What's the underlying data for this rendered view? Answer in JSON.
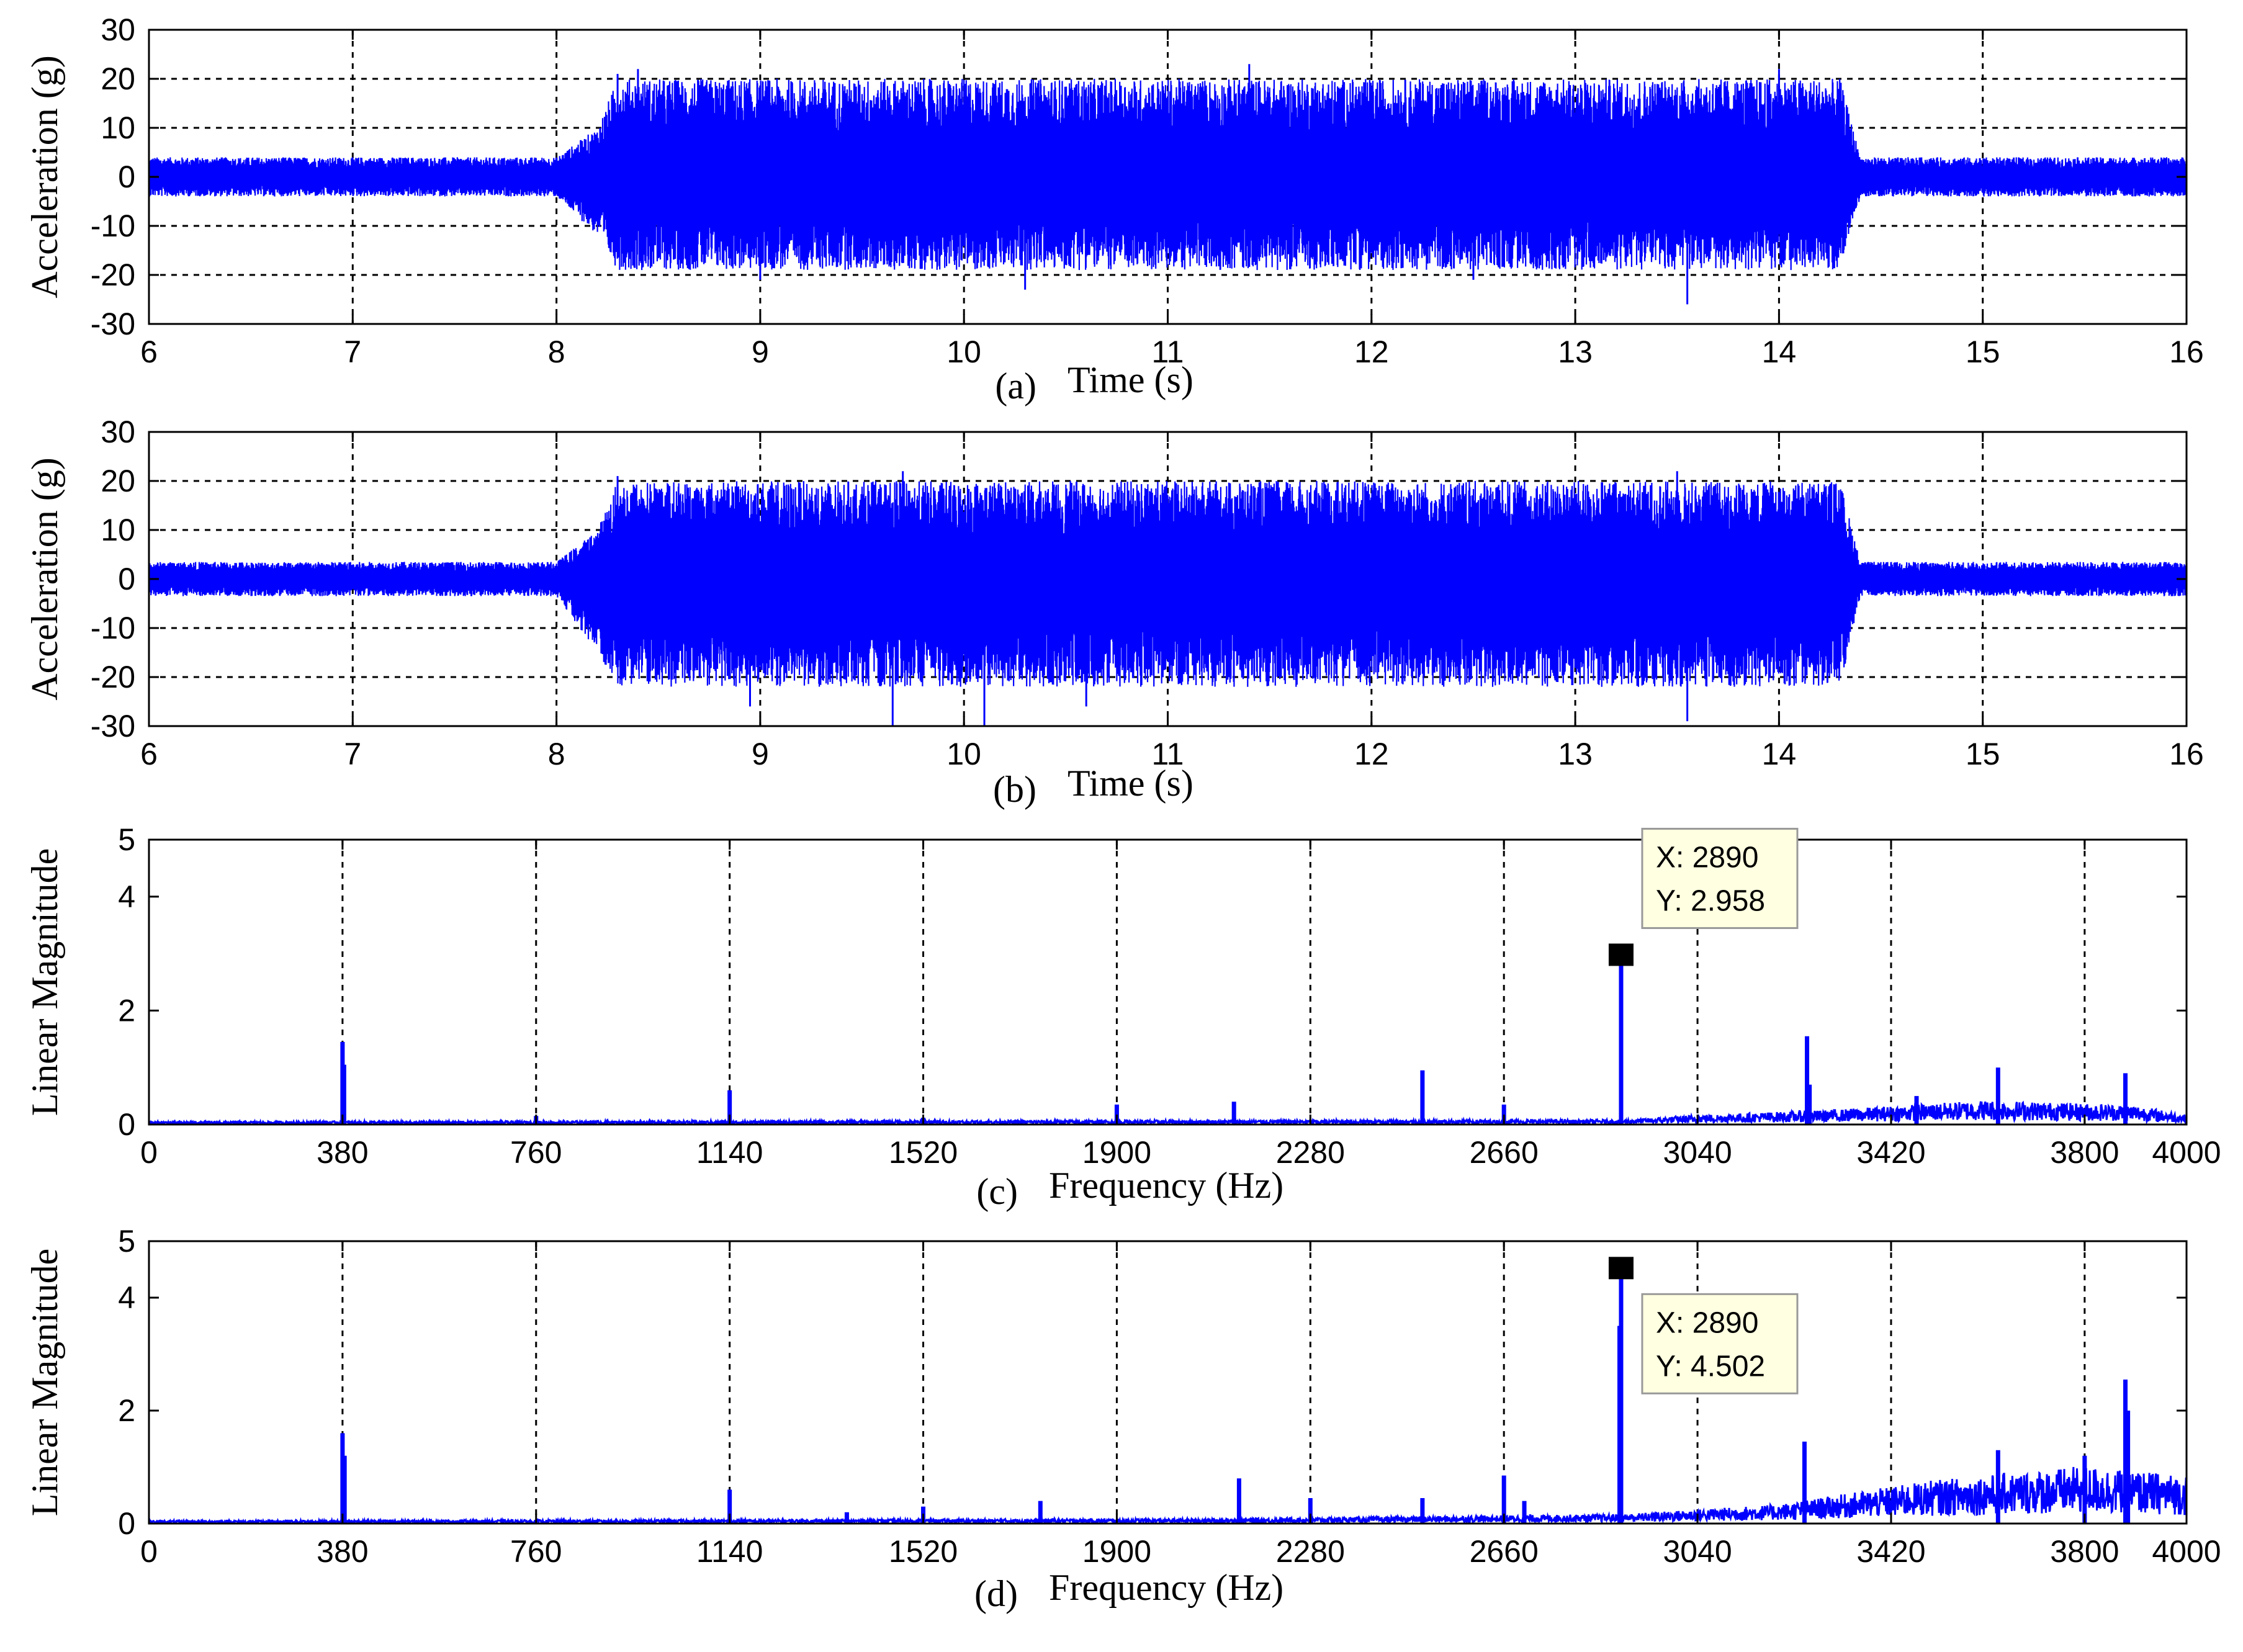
{
  "chart_data": [
    {
      "type": "line",
      "panel": "(a)",
      "xlabel": "Time (s)",
      "ylabel": "Acceleration (g)",
      "xlim": [
        6,
        16
      ],
      "ylim": [
        -30,
        30
      ],
      "xticks": [
        "6",
        "7",
        "8",
        "9",
        "10",
        "11",
        "12",
        "13",
        "14",
        "15",
        "16"
      ],
      "yticks": [
        "30",
        "20",
        "10",
        "0",
        "-10",
        "-20",
        "-30"
      ],
      "grid": true,
      "color": "#0000ff",
      "envelope": {
        "t": [
          6,
          7.9,
          8.0,
          8.2,
          8.3,
          14.3,
          14.4,
          16
        ],
        "upper": [
          4,
          4,
          4,
          10,
          20,
          20,
          4,
          4
        ],
        "lower": [
          -4,
          -4,
          -4,
          -12,
          -19,
          -19,
          -4,
          -4
        ]
      },
      "peaks": [
        {
          "x": 8.3,
          "y": 21
        },
        {
          "x": 8.4,
          "y": 22
        },
        {
          "x": 11.4,
          "y": 23
        },
        {
          "x": 14.0,
          "y": 22
        },
        {
          "x": 9.0,
          "y": -21
        },
        {
          "x": 10.3,
          "y": -23
        },
        {
          "x": 13.55,
          "y": -26
        },
        {
          "x": 12.5,
          "y": -21
        }
      ]
    },
    {
      "type": "line",
      "panel": "(b)",
      "xlabel": "Time (s)",
      "ylabel": "Acceleration (g)",
      "xlim": [
        6,
        16
      ],
      "ylim": [
        -30,
        30
      ],
      "xticks": [
        "6",
        "7",
        "8",
        "9",
        "10",
        "11",
        "12",
        "13",
        "14",
        "15",
        "16"
      ],
      "yticks": [
        "30",
        "20",
        "10",
        "0",
        "-10",
        "-20",
        "-30"
      ],
      "grid": true,
      "color": "#0000ff",
      "envelope": {
        "t": [
          6,
          7.9,
          8.0,
          8.2,
          8.3,
          14.3,
          14.4,
          16
        ],
        "upper": [
          3.5,
          3.5,
          3.5,
          10,
          20,
          20,
          3.5,
          3.5
        ],
        "lower": [
          -3.5,
          -3.5,
          -3.5,
          -15,
          -22,
          -22,
          -3.5,
          -3.5
        ]
      },
      "peaks": [
        {
          "x": 8.3,
          "y": 21
        },
        {
          "x": 9.7,
          "y": 22
        },
        {
          "x": 13.5,
          "y": 22
        },
        {
          "x": 9.65,
          "y": -30
        },
        {
          "x": 10.1,
          "y": -30
        },
        {
          "x": 8.95,
          "y": -26
        },
        {
          "x": 10.6,
          "y": -26
        },
        {
          "x": 13.55,
          "y": -29
        }
      ]
    },
    {
      "type": "line",
      "panel": "(c)",
      "xlabel": "Frequency (Hz)",
      "ylabel": "Linear Magnitude",
      "xlim": [
        0,
        4000
      ],
      "ylim": [
        0,
        5
      ],
      "xticks": [
        "0",
        "380",
        "760",
        "1140",
        "1520",
        "1900",
        "2280",
        "2660",
        "3040",
        "3420",
        "3800",
        "4000"
      ],
      "yticks": [
        "5",
        "4",
        "2",
        "0"
      ],
      "ytick_values": [
        5,
        4,
        2,
        0
      ],
      "grid": "vertical",
      "color": "#0000ff",
      "peaks": [
        {
          "x": 380,
          "y": 1.45
        },
        {
          "x": 383,
          "y": 1.05
        },
        {
          "x": 760,
          "y": 0.15
        },
        {
          "x": 1140,
          "y": 0.6
        },
        {
          "x": 1520,
          "y": 0.12
        },
        {
          "x": 1900,
          "y": 0.35
        },
        {
          "x": 2130,
          "y": 0.4
        },
        {
          "x": 2500,
          "y": 0.95
        },
        {
          "x": 2660,
          "y": 0.35
        },
        {
          "x": 2890,
          "y": 2.958
        },
        {
          "x": 3255,
          "y": 1.55
        },
        {
          "x": 3260,
          "y": 0.7
        },
        {
          "x": 3470,
          "y": 0.5
        },
        {
          "x": 3630,
          "y": 1.0
        },
        {
          "x": 3880,
          "y": 0.9
        }
      ],
      "noise_floor": [
        {
          "x": 0,
          "y": 0.03
        },
        {
          "x": 2900,
          "y": 0.05
        },
        {
          "x": 3040,
          "y": 0.1
        },
        {
          "x": 3300,
          "y": 0.15
        },
        {
          "x": 3600,
          "y": 0.25
        },
        {
          "x": 3900,
          "y": 0.2
        },
        {
          "x": 4000,
          "y": 0.1
        }
      ],
      "datatip": {
        "x_text": "X: 2890",
        "y_text": "Y: 2.958",
        "x": 2890,
        "y": 2.958
      }
    },
    {
      "type": "line",
      "panel": "(d)",
      "xlabel": "Frequency (Hz)",
      "ylabel": "Linear Magnitude",
      "xlim": [
        0,
        4000
      ],
      "ylim": [
        0,
        5
      ],
      "xticks": [
        "0",
        "380",
        "760",
        "1140",
        "1520",
        "1900",
        "2280",
        "2660",
        "3040",
        "3420",
        "3800",
        "4000"
      ],
      "yticks": [
        "5",
        "4",
        "2",
        "0"
      ],
      "ytick_values": [
        5,
        4,
        2,
        0
      ],
      "grid": "vertical",
      "color": "#0000ff",
      "peaks": [
        {
          "x": 380,
          "y": 1.6
        },
        {
          "x": 384,
          "y": 1.2
        },
        {
          "x": 1140,
          "y": 0.6
        },
        {
          "x": 1370,
          "y": 0.2
        },
        {
          "x": 1520,
          "y": 0.3
        },
        {
          "x": 1750,
          "y": 0.4
        },
        {
          "x": 2140,
          "y": 0.8
        },
        {
          "x": 2280,
          "y": 0.45
        },
        {
          "x": 2500,
          "y": 0.45
        },
        {
          "x": 2660,
          "y": 0.85
        },
        {
          "x": 2700,
          "y": 0.4
        },
        {
          "x": 2890,
          "y": 4.502
        },
        {
          "x": 2887,
          "y": 3.5
        },
        {
          "x": 3250,
          "y": 1.45
        },
        {
          "x": 3630,
          "y": 1.3
        },
        {
          "x": 3800,
          "y": 1.2
        },
        {
          "x": 3880,
          "y": 2.55
        },
        {
          "x": 3885,
          "y": 2.0
        }
      ],
      "noise_floor": [
        {
          "x": 0,
          "y": 0.03
        },
        {
          "x": 2100,
          "y": 0.05
        },
        {
          "x": 2900,
          "y": 0.1
        },
        {
          "x": 3200,
          "y": 0.2
        },
        {
          "x": 3500,
          "y": 0.45
        },
        {
          "x": 3800,
          "y": 0.6
        },
        {
          "x": 4000,
          "y": 0.5
        }
      ],
      "datatip": {
        "x_text": "X: 2890",
        "y_text": "Y: 4.502",
        "x": 2890,
        "y": 4.502
      }
    }
  ]
}
